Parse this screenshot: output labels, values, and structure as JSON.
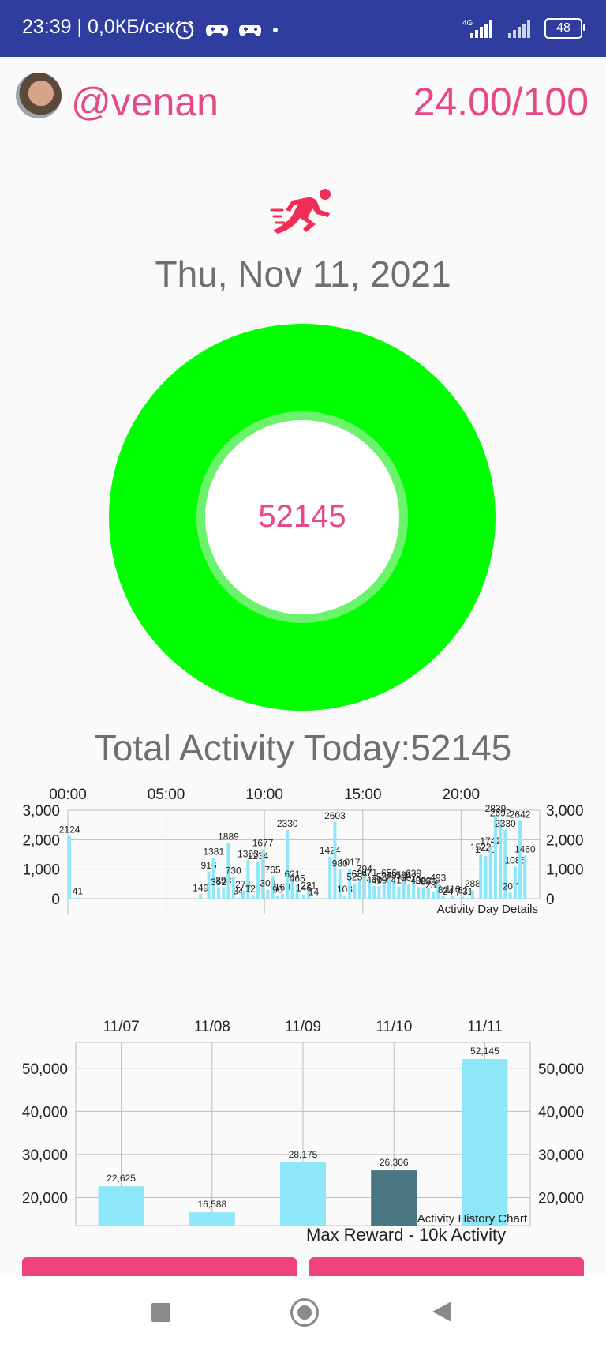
{
  "status_bar": {
    "time": "23:39 | 0,0КБ/сек",
    "icons": [
      "alarm-icon",
      "game-controller-icon",
      "game-controller-icon",
      "dot-icon"
    ],
    "network": "4G",
    "battery": "48"
  },
  "header": {
    "username": "@venan",
    "score": "24.00/100"
  },
  "date": "Thu, Nov 11, 2021",
  "ring": {
    "value": "52145",
    "progress": 1.0,
    "color": "#00ff00",
    "inner_ring_color": "#6cf36c"
  },
  "total_activity": "Total Activity Today:52145",
  "colors": {
    "accent": "#e64988",
    "bar": "#8ee7f8",
    "bar_selected": "#4a7682",
    "button": "#f0437b",
    "status_bar": "#2f3e9e"
  },
  "chart_data": [
    {
      "type": "bar",
      "description_label": "Activity Day Details",
      "x_tick_labels": [
        "00:00",
        "05:00",
        "10:00",
        "15:00",
        "20:00"
      ],
      "y_tick_labels": [
        "3,000",
        "2,000",
        "1,000",
        "0"
      ],
      "ylim": [
        0,
        3000
      ],
      "xlim_minutes": [
        0,
        1440
      ],
      "grid": true,
      "points": [
        {
          "x": 5,
          "y": 2124,
          "label": "2124"
        },
        {
          "x": 30,
          "y": 41,
          "label": "41"
        },
        {
          "x": 405,
          "y": 149,
          "label": "149"
        },
        {
          "x": 430,
          "y": 916,
          "label": "916"
        },
        {
          "x": 445,
          "y": 1381,
          "label": "1381"
        },
        {
          "x": 460,
          "y": 352,
          "label": "352"
        },
        {
          "x": 475,
          "y": 398,
          "label": "398"
        },
        {
          "x": 490,
          "y": 1889,
          "label": "1889"
        },
        {
          "x": 505,
          "y": 730,
          "label": "730"
        },
        {
          "x": 520,
          "y": 34,
          "label": "34"
        },
        {
          "x": 535,
          "y": 274,
          "label": "274"
        },
        {
          "x": 550,
          "y": 1303,
          "label": "1303"
        },
        {
          "x": 565,
          "y": 126,
          "label": "126"
        },
        {
          "x": 580,
          "y": 1234,
          "label": "1234"
        },
        {
          "x": 595,
          "y": 1677,
          "label": "1677"
        },
        {
          "x": 610,
          "y": 303,
          "label": "303"
        },
        {
          "x": 625,
          "y": 765,
          "label": "765"
        },
        {
          "x": 640,
          "y": 90,
          "label": "90"
        },
        {
          "x": 655,
          "y": 169,
          "label": "169"
        },
        {
          "x": 670,
          "y": 2330,
          "label": "2330"
        },
        {
          "x": 685,
          "y": 621,
          "label": "621"
        },
        {
          "x": 700,
          "y": 465,
          "label": "465"
        },
        {
          "x": 720,
          "y": 146,
          "label": "146"
        },
        {
          "x": 735,
          "y": 221,
          "label": "221"
        },
        {
          "x": 750,
          "y": 14,
          "label": "14"
        },
        {
          "x": 800,
          "y": 1424,
          "label": "1424"
        },
        {
          "x": 815,
          "y": 2603,
          "label": "2603"
        },
        {
          "x": 830,
          "y": 980,
          "label": "980"
        },
        {
          "x": 845,
          "y": 103,
          "label": "103"
        },
        {
          "x": 860,
          "y": 1017,
          "label": "1017"
        },
        {
          "x": 875,
          "y": 525,
          "label": "525"
        },
        {
          "x": 890,
          "y": 634,
          "label": "634"
        },
        {
          "x": 905,
          "y": 794,
          "label": "794"
        },
        {
          "x": 920,
          "y": 671,
          "label": "671"
        },
        {
          "x": 935,
          "y": 430,
          "label": "430"
        },
        {
          "x": 950,
          "y": 419,
          "label": "419"
        },
        {
          "x": 965,
          "y": 528,
          "label": "528"
        },
        {
          "x": 980,
          "y": 656,
          "label": "656"
        },
        {
          "x": 995,
          "y": 581,
          "label": "581"
        },
        {
          "x": 1010,
          "y": 414,
          "label": "414"
        },
        {
          "x": 1025,
          "y": 591,
          "label": "591"
        },
        {
          "x": 1040,
          "y": 507,
          "label": "507"
        },
        {
          "x": 1055,
          "y": 639,
          "label": "639"
        },
        {
          "x": 1070,
          "y": 400,
          "label": "400"
        },
        {
          "x": 1085,
          "y": 383,
          "label": "383"
        },
        {
          "x": 1100,
          "y": 355,
          "label": "355"
        },
        {
          "x": 1115,
          "y": 235,
          "label": "235"
        },
        {
          "x": 1130,
          "y": 493,
          "label": "493"
        },
        {
          "x": 1145,
          "y": 82,
          "label": "82"
        },
        {
          "x": 1160,
          "y": 24,
          "label": "24"
        },
        {
          "x": 1175,
          "y": 110,
          "label": "110"
        },
        {
          "x": 1190,
          "y": 7,
          "label": "7"
        },
        {
          "x": 1205,
          "y": 61,
          "label": "61"
        },
        {
          "x": 1220,
          "y": 31,
          "label": "31"
        },
        {
          "x": 1235,
          "y": 288,
          "label": "288"
        },
        {
          "x": 1260,
          "y": 1523,
          "label": "1523"
        },
        {
          "x": 1275,
          "y": 1440,
          "label": "1440"
        },
        {
          "x": 1290,
          "y": 1742,
          "label": "1742"
        },
        {
          "x": 1305,
          "y": 2839,
          "label": "2839"
        },
        {
          "x": 1320,
          "y": 2692,
          "label": "2692"
        },
        {
          "x": 1335,
          "y": 2330,
          "label": "2330"
        },
        {
          "x": 1350,
          "y": 207,
          "label": "207"
        },
        {
          "x": 1365,
          "y": 1086,
          "label": "1086"
        },
        {
          "x": 1380,
          "y": 2642,
          "label": "2642"
        },
        {
          "x": 1395,
          "y": 1460,
          "label": "1460"
        }
      ]
    },
    {
      "type": "bar",
      "description_label": "Activity History Chart",
      "categories": [
        "11/07",
        "11/08",
        "11/09",
        "11/10",
        "11/11"
      ],
      "values": [
        22625,
        16588,
        28175,
        26306,
        52145
      ],
      "value_labels": [
        "22,625",
        "16,588",
        "28,175",
        "26,306",
        "52,145"
      ],
      "selected_index": 3,
      "y_tick_labels": [
        "50,000",
        "40,000",
        "30,000",
        "20,000"
      ],
      "ylim": [
        13500,
        56000
      ],
      "grid": true,
      "overlay_text": "Max Reward - 10k Activity"
    }
  ],
  "buttons": [
    "",
    ""
  ],
  "nav": [
    "recent-apps-button",
    "home-button",
    "back-button"
  ]
}
